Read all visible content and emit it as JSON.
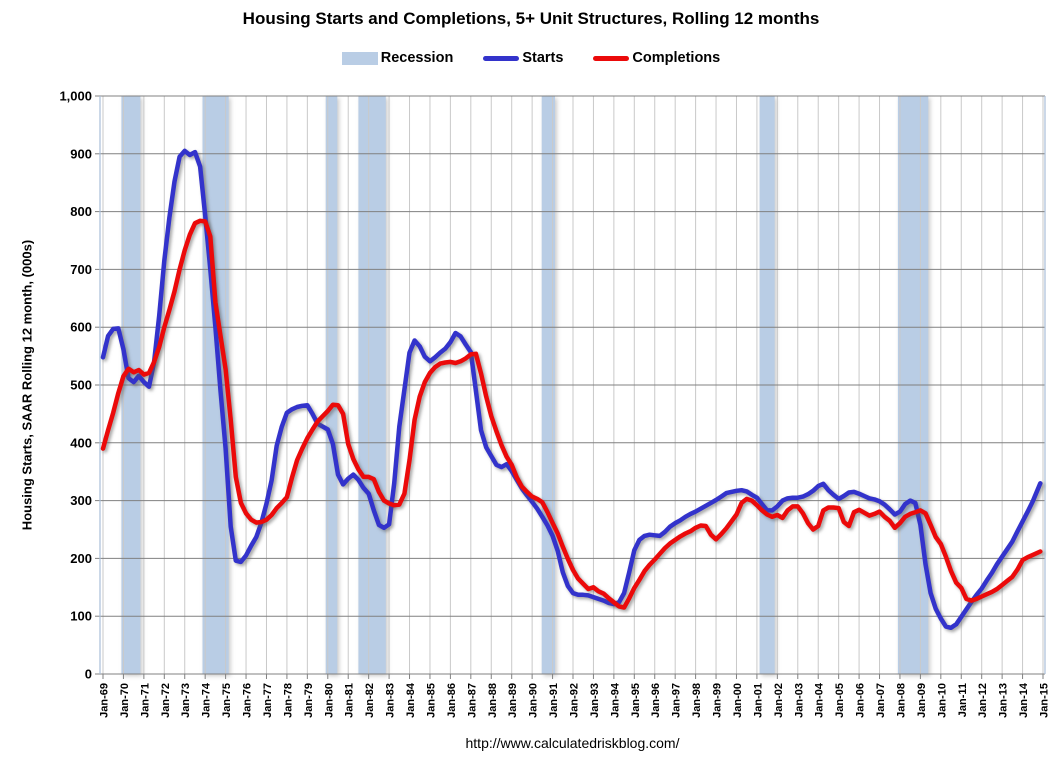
{
  "header": {
    "title": "Housing Starts and Completions, 5+ Unit Structures, Rolling 12 months"
  },
  "legend": {
    "recession_label": "Recession",
    "starts_label": "Starts",
    "completions_label": "Completions"
  },
  "colors": {
    "recession": "#B9CDE5",
    "starts": "#3333CB",
    "completions": "#EB0A0A",
    "h_grid": "#808080",
    "v_grid": "#C9C9C9",
    "axis_border": "#A9BFD9",
    "text": "#000000"
  },
  "y_axis": {
    "title": "Housing Starts, SAAR Rolling 12 month, (000s)",
    "tick_labels": [
      "1,000",
      "900",
      "800",
      "700",
      "600",
      "500",
      "400",
      "300",
      "200",
      "100",
      "0"
    ]
  },
  "x_axis": {
    "tick_labels": [
      "Jan-69",
      "Jan-70",
      "Jan-71",
      "Jan-72",
      "Jan-73",
      "Jan-74",
      "Jan-75",
      "Jan-76",
      "Jan-77",
      "Jan-78",
      "Jan-79",
      "Jan-80",
      "Jan-81",
      "Jan-82",
      "Jan-83",
      "Jan-84",
      "Jan-85",
      "Jan-86",
      "Jan-87",
      "Jan-88",
      "Jan-89",
      "Jan-90",
      "Jan-91",
      "Jan-92",
      "Jan-93",
      "Jan-94",
      "Jan-95",
      "Jan-96",
      "Jan-97",
      "Jan-98",
      "Jan-99",
      "Jan-00",
      "Jan-01",
      "Jan-02",
      "Jan-03",
      "Jan-04",
      "Jan-05",
      "Jan-06",
      "Jan-07",
      "Jan-08",
      "Jan-09",
      "Jan-10",
      "Jan-11",
      "Jan-12",
      "Jan-13",
      "Jan-14",
      "Jan-15"
    ]
  },
  "footer": {
    "url": "http://www.calculatedriskblog.com/"
  },
  "chart_data": {
    "type": "line",
    "title": "Housing Starts and Completions, 5+ Unit Structures, Rolling 12 months",
    "ylabel": "Housing Starts, SAAR Rolling 12 month, (000s)",
    "xlabel": "",
    "ylim": [
      0,
      1000
    ],
    "x_range": [
      1969,
      2015
    ],
    "grid": true,
    "legend_position": "top",
    "recession_bands": [
      [
        1969.9,
        1970.83
      ],
      [
        1973.87,
        1975.15
      ],
      [
        1979.9,
        1980.47
      ],
      [
        1981.5,
        1982.84
      ],
      [
        1990.47,
        1991.12
      ],
      [
        2001.13,
        2001.87
      ],
      [
        2007.9,
        2009.39
      ]
    ],
    "x": [
      1969,
      1969.25,
      1969.5,
      1969.75,
      1970,
      1970.25,
      1970.5,
      1970.75,
      1971,
      1971.25,
      1971.5,
      1971.75,
      1972,
      1972.25,
      1972.5,
      1972.75,
      1973,
      1973.25,
      1973.5,
      1973.75,
      1974,
      1974.25,
      1974.5,
      1974.75,
      1975,
      1975.25,
      1975.5,
      1975.75,
      1976,
      1976.25,
      1976.5,
      1976.75,
      1977,
      1977.25,
      1977.5,
      1977.75,
      1978,
      1978.25,
      1978.5,
      1978.75,
      1979,
      1979.25,
      1979.5,
      1979.75,
      1980,
      1980.25,
      1980.5,
      1980.75,
      1981,
      1981.25,
      1981.5,
      1981.75,
      1982,
      1982.25,
      1982.5,
      1982.75,
      1983,
      1983.25,
      1983.5,
      1983.75,
      1984,
      1984.25,
      1984.5,
      1984.75,
      1985,
      1985.25,
      1985.5,
      1985.75,
      1986,
      1986.25,
      1986.5,
      1986.75,
      1987,
      1987.25,
      1987.5,
      1987.75,
      1988,
      1988.25,
      1988.5,
      1988.75,
      1989,
      1989.25,
      1989.5,
      1989.75,
      1990,
      1990.25,
      1990.5,
      1990.75,
      1991,
      1991.25,
      1991.5,
      1991.75,
      1992,
      1992.25,
      1992.5,
      1992.75,
      1993,
      1993.25,
      1993.5,
      1993.75,
      1994,
      1994.25,
      1994.5,
      1994.75,
      1995,
      1995.25,
      1995.5,
      1995.75,
      1996,
      1996.25,
      1996.5,
      1996.75,
      1997,
      1997.25,
      1997.5,
      1997.75,
      1998,
      1998.25,
      1998.5,
      1998.75,
      1999,
      1999.25,
      1999.5,
      1999.75,
      2000,
      2000.25,
      2000.5,
      2000.75,
      2001,
      2001.25,
      2001.5,
      2001.75,
      2002,
      2002.25,
      2002.5,
      2002.75,
      2003,
      2003.25,
      2003.5,
      2003.75,
      2004,
      2004.25,
      2004.5,
      2004.75,
      2005,
      2005.25,
      2005.5,
      2005.75,
      2006,
      2006.25,
      2006.5,
      2006.75,
      2007,
      2007.25,
      2007.5,
      2007.75,
      2008,
      2008.25,
      2008.5,
      2008.75,
      2009,
      2009.25,
      2009.5,
      2009.75,
      2010,
      2010.25,
      2010.5,
      2010.75,
      2011,
      2011.25,
      2011.5,
      2011.75,
      2012,
      2012.25,
      2012.5,
      2012.75,
      2013,
      2013.25,
      2013.5,
      2013.75,
      2014,
      2014.25,
      2014.5,
      2014.87
    ],
    "series": [
      {
        "name": "Starts",
        "color": "#3333CB",
        "values": [
          548,
          585,
          597,
          598,
          562,
          512,
          505,
          516,
          505,
          497,
          540,
          620,
          715,
          790,
          852,
          895,
          905,
          898,
          903,
          878,
          793,
          700,
          600,
          490,
          390,
          255,
          196,
          194,
          205,
          222,
          237,
          262,
          295,
          335,
          395,
          428,
          452,
          458,
          462,
          464,
          465,
          450,
          433,
          428,
          423,
          398,
          345,
          328,
          338,
          345,
          336,
          322,
          312,
          283,
          258,
          253,
          259,
          330,
          428,
          492,
          556,
          577,
          567,
          549,
          541,
          548,
          556,
          563,
          574,
          590,
          584,
          570,
          557,
          490,
          422,
          392,
          377,
          362,
          358,
          363,
          351,
          336,
          321,
          309,
          298,
          286,
          272,
          257,
          239,
          213,
          176,
          152,
          140,
          137,
          137,
          136,
          133,
          130,
          127,
          123,
          121,
          124,
          140,
          176,
          214,
          232,
          239,
          241,
          240,
          239,
          246,
          255,
          261,
          266,
          272,
          277,
          281,
          286,
          291,
          296,
          301,
          307,
          313,
          315,
          317,
          318,
          316,
          310,
          305,
          294,
          283,
          283,
          290,
          300,
          304,
          305,
          305,
          307,
          311,
          317,
          325,
          329,
          318,
          310,
          303,
          308,
          314,
          315,
          312,
          308,
          304,
          302,
          299,
          293,
          285,
          276,
          281,
          294,
          300,
          296,
          258,
          190,
          140,
          113,
          96,
          82,
          80,
          86,
          99,
          112,
          125,
          137,
          148,
          162,
          175,
          190,
          203,
          216,
          229,
          247,
          264,
          281,
          299,
          330
        ]
      },
      {
        "name": "Completions",
        "color": "#EB0A0A",
        "values": [
          390,
          422,
          452,
          486,
          515,
          528,
          522,
          526,
          518,
          521,
          540,
          566,
          600,
          630,
          662,
          700,
          733,
          760,
          780,
          784,
          783,
          757,
          643,
          585,
          527,
          440,
          341,
          296,
          278,
          267,
          262,
          263,
          267,
          275,
          287,
          296,
          306,
          340,
          370,
          390,
          408,
          423,
          437,
          446,
          455,
          466,
          465,
          450,
          398,
          372,
          354,
          341,
          341,
          337,
          315,
          300,
          295,
          292,
          293,
          312,
          370,
          440,
          480,
          505,
          521,
          531,
          537,
          539,
          540,
          538,
          541,
          546,
          553,
          554,
          520,
          480,
          446,
          420,
          396,
          376,
          362,
          340,
          324,
          315,
          307,
          303,
          297,
          280,
          261,
          243,
          220,
          199,
          180,
          165,
          156,
          147,
          150,
          143,
          139,
          131,
          124,
          117,
          115,
          131,
          149,
          163,
          178,
          189,
          198,
          208,
          218,
          226,
          232,
          238,
          243,
          247,
          253,
          257,
          256,
          241,
          233,
          242,
          252,
          264,
          276,
          296,
          303,
          300,
          292,
          283,
          276,
          272,
          275,
          270,
          283,
          290,
          290,
          278,
          261,
          250,
          256,
          283,
          288,
          288,
          287,
          263,
          256,
          280,
          284,
          279,
          274,
          277,
          281,
          272,
          265,
          253,
          261,
          272,
          277,
          280,
          283,
          278,
          258,
          237,
          225,
          203,
          178,
          158,
          149,
          130,
          127,
          130,
          134,
          138,
          142,
          147,
          154,
          161,
          168,
          181,
          197,
          202,
          206,
          212
        ]
      }
    ]
  }
}
